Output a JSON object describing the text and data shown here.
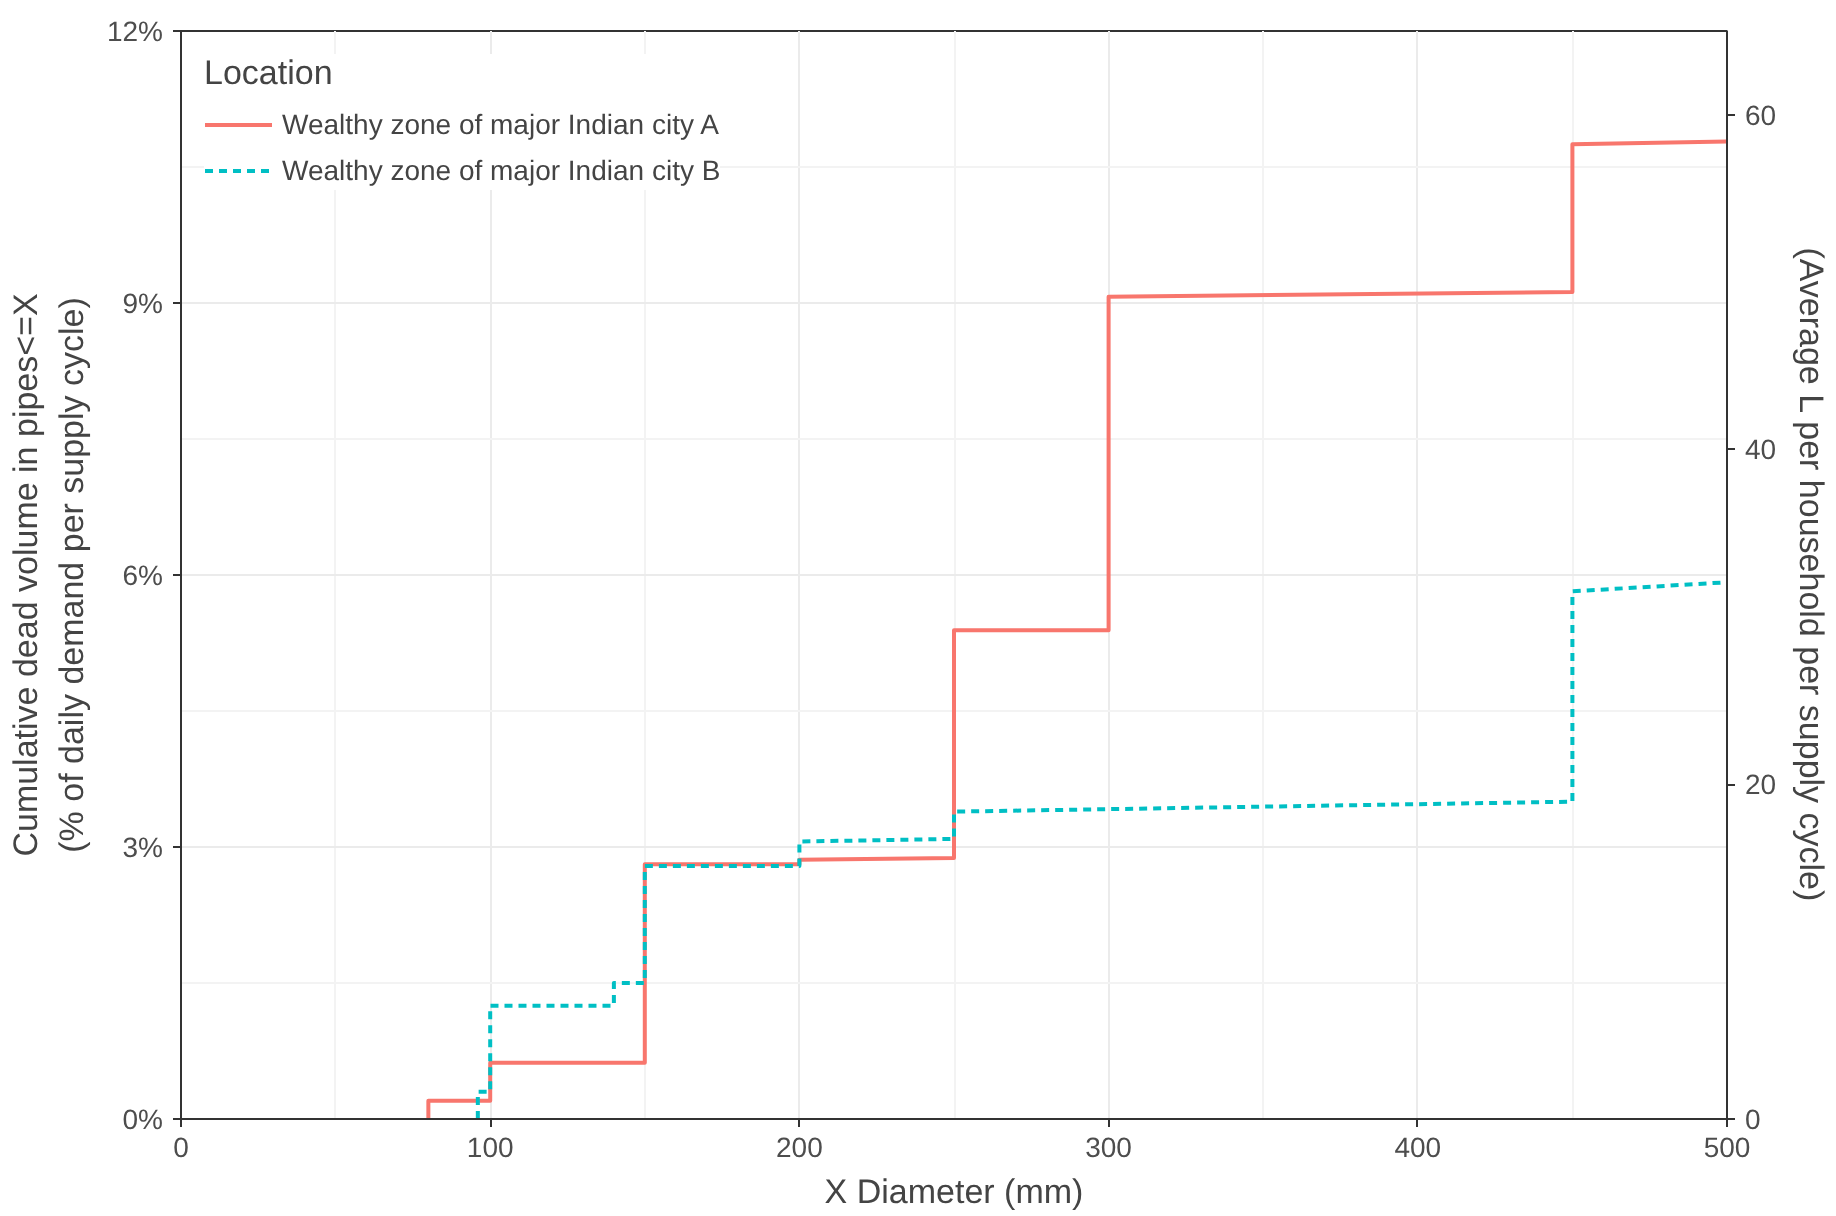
{
  "chart_data": {
    "type": "line",
    "xlabel": "X Diameter (mm)",
    "ylabel": "Cumulative dead volume in pipes<=X\n(% of daily demand per supply cycle)",
    "y2label": "(Average L per household per supply cycle)",
    "legend_title": "Location",
    "series": [
      {
        "name": "Wealthy zone of major Indian city A",
        "color": "#f8766d",
        "line_style": "solid",
        "x": [
          80,
          80,
          100,
          100,
          150,
          150,
          200,
          200,
          250,
          250,
          300,
          300,
          450,
          450,
          500
        ],
        "values": [
          0,
          0.2,
          0.2,
          0.62,
          0.62,
          2.81,
          2.81,
          2.86,
          2.88,
          5.39,
          5.39,
          9.07,
          9.12,
          10.75,
          10.78
        ]
      },
      {
        "name": "Wealthy zone of major Indian city B",
        "color": "#00bfc4",
        "line_style": "dashed",
        "x": [
          96,
          96,
          100,
          100,
          140,
          140,
          150,
          150,
          200,
          200,
          250,
          250,
          450,
          450,
          500
        ],
        "values": [
          0,
          0.3,
          0.3,
          1.25,
          1.25,
          1.5,
          1.5,
          2.79,
          2.79,
          3.06,
          3.09,
          3.39,
          3.5,
          5.82,
          5.92
        ]
      }
    ],
    "xlim": [
      0,
      500
    ],
    "xticks": [
      0,
      100,
      200,
      300,
      400,
      500
    ],
    "ylim": [
      0,
      12
    ],
    "yticks": [
      {
        "value": 0,
        "label": "0%"
      },
      {
        "value": 3,
        "label": "3%"
      },
      {
        "value": 6,
        "label": "6%"
      },
      {
        "value": 9,
        "label": "9%"
      },
      {
        "value": 12,
        "label": "12%"
      }
    ],
    "y2lim": [
      0,
      65
    ],
    "y2ticks": [
      0,
      20,
      40,
      60
    ],
    "grid": true,
    "legend": "top left"
  }
}
